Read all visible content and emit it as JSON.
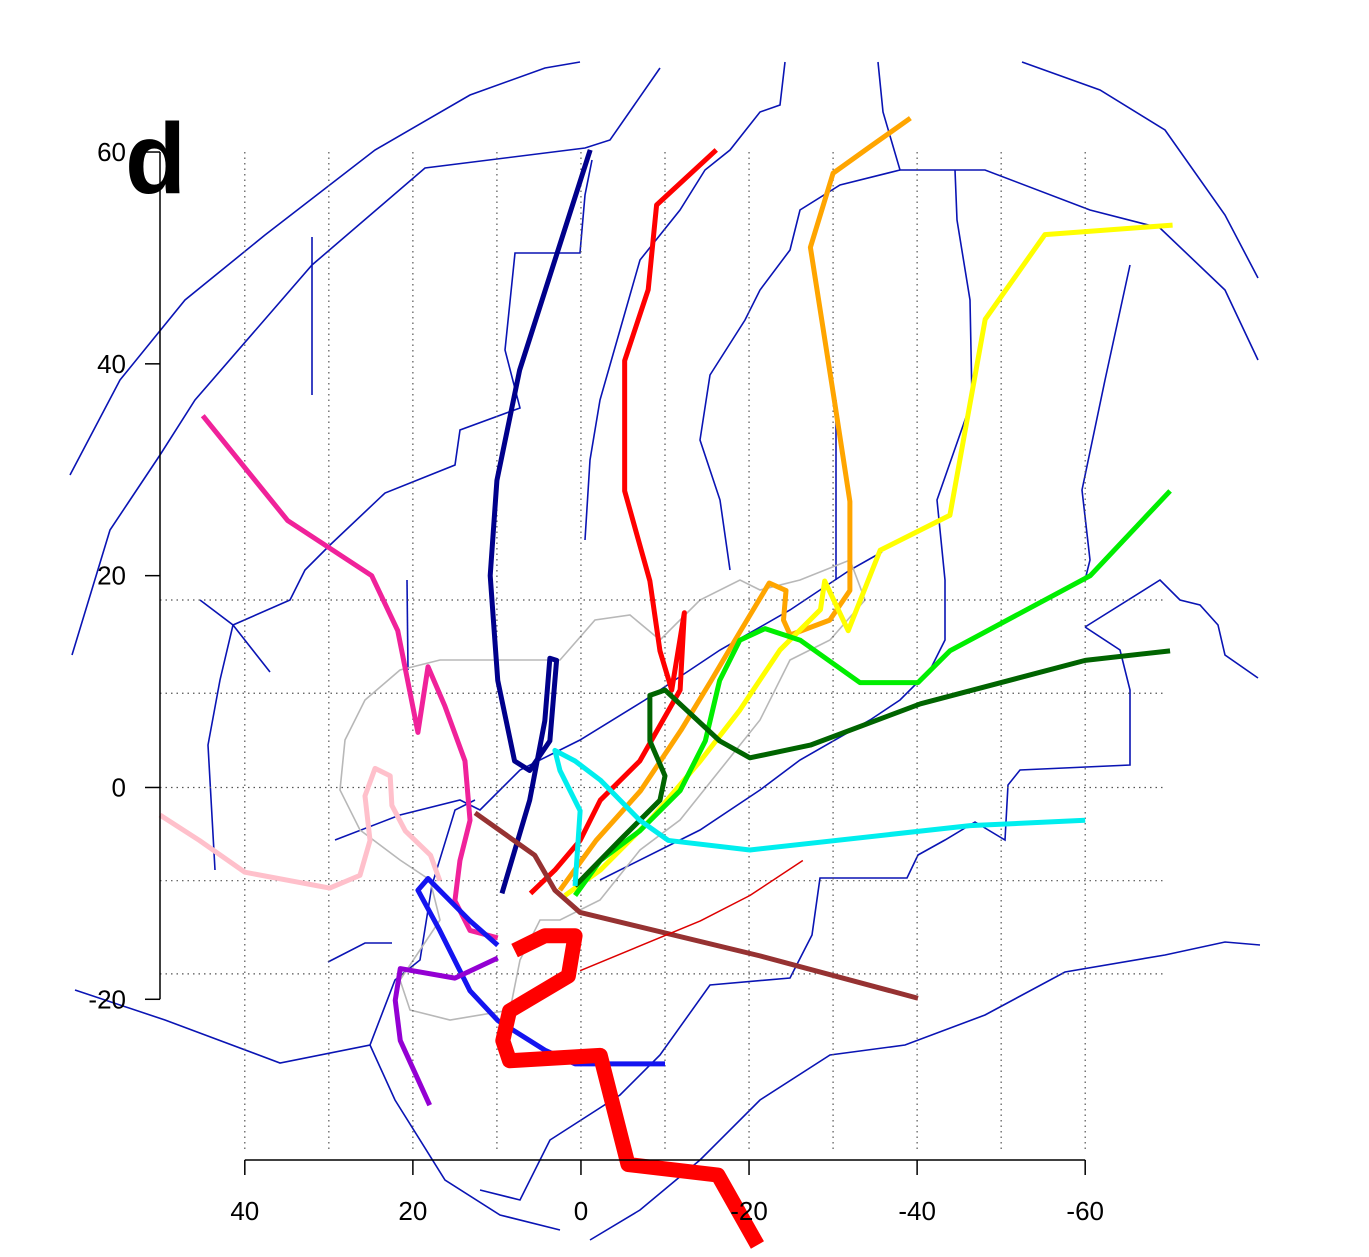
{
  "chart_data": {
    "type": "line",
    "label": "d",
    "xlim": [
      60.8,
      -80.8
    ],
    "ylim": [
      -43.2,
      68.5
    ],
    "xticks": [
      40,
      20,
      0,
      -20,
      -40,
      -60
    ],
    "yticks": [
      60,
      40,
      20,
      0,
      -20
    ],
    "grid_x": [
      40,
      30,
      20,
      10,
      0,
      -10,
      -20,
      -30,
      -40,
      -50,
      -60
    ],
    "grid_y": [
      17.7,
      8.9,
      0,
      -8.8,
      -17.6
    ],
    "series": [
      {
        "color": "#00008b",
        "width": 5,
        "x": [
          -1.1,
          7.3,
          10,
          10.8,
          9.9,
          7.9,
          6.1,
          3.7,
          2.9,
          3.7,
          4.3,
          6.1,
          9.4
        ],
        "values": [
          60.2,
          39.4,
          29,
          20,
          10.1,
          2.5,
          1.6,
          4.4,
          12,
          12.2,
          6.3,
          -1.2,
          -10
        ]
      },
      {
        "color": "#ff0000",
        "width": 5,
        "x": [
          -16.1,
          -9.0,
          -8,
          -5.2,
          -5.2,
          -8.2,
          -9.4,
          -10.8,
          -12.3,
          -11.8,
          -7.0,
          -2.3,
          0.1,
          3.1,
          6
        ],
        "values": [
          60.2,
          55,
          47,
          40.3,
          28,
          19.5,
          12.9,
          9.2,
          16.5,
          9.2,
          2.5,
          -1.2,
          -5,
          -7.8,
          -10
        ]
      },
      {
        "color": "#ffa500",
        "width": 5,
        "x": [
          -39.2,
          -34.4,
          -30,
          -27.3,
          -30.2,
          -32,
          -32,
          -29.6,
          -24.9,
          -24.1,
          -24.4,
          -22.4,
          -19,
          -15.5,
          -11.9,
          -7.1,
          -1.8,
          2.5
        ],
        "values": [
          63.2,
          60.5,
          58,
          51,
          36.3,
          27,
          18.6,
          15.8,
          14.4,
          15.8,
          18.6,
          19.3,
          14.8,
          10.1,
          5.4,
          -0.3,
          -5,
          -9.7
        ]
      },
      {
        "color": "#ffff00",
        "width": 5,
        "x": [
          -70.4,
          -55.2,
          -48.1,
          -43.9,
          -35.6,
          -31.8,
          -29,
          -28.5,
          -23.7,
          -18.9,
          -14.2,
          -8.2,
          -2.3,
          1.9
        ],
        "values": [
          53.1,
          52.2,
          44.2,
          25.7,
          22.4,
          14.8,
          19.5,
          16.8,
          13,
          7.3,
          2.5,
          -3.1,
          -7.8,
          -10.2
        ]
      },
      {
        "color": "#00ee00",
        "width": 5,
        "x": [
          -70.1,
          -60.6,
          -43.9,
          -40.1,
          -33.2,
          -26.1,
          -21.9,
          -18.9,
          -16.5,
          -14.8,
          -11.8,
          -7,
          -2.3,
          0.7
        ],
        "values": [
          28,
          20,
          12.9,
          9.9,
          9.9,
          13.9,
          15,
          13.9,
          10.1,
          4.4,
          -0.3,
          -4.1,
          -6.9,
          -10.2
        ]
      },
      {
        "color": "#006400",
        "width": 5,
        "x": [
          -70.1,
          -60,
          -40.4,
          -27.3,
          -20.1,
          -16.5,
          -10,
          -8.2,
          -8.2,
          -10,
          -9.4,
          -4.6,
          0.7
        ],
        "values": [
          12.9,
          12,
          7.9,
          4,
          2.8,
          4.4,
          9.2,
          8.7,
          4.4,
          1.1,
          -1.2,
          -5,
          -9.3
        ]
      },
      {
        "color": "#00eeee",
        "width": 5,
        "x": [
          -60,
          -46.3,
          -20.1,
          -10.4,
          -7,
          -2.3,
          0.7,
          3.1,
          2.5,
          0.1,
          0.7
        ],
        "values": [
          -3.1,
          -3.6,
          -5.9,
          -5,
          -3.1,
          0.7,
          2.5,
          3.5,
          1.6,
          -2.2,
          -9.3
        ]
      },
      {
        "color": "#963232",
        "width": 5,
        "x": [
          -40.1,
          -21.3,
          0.1,
          3.1,
          5.5,
          12.6
        ],
        "values": [
          -19.9,
          -15.9,
          -11.8,
          -9.7,
          -6.4,
          -2.4
        ]
      },
      {
        "color": "#ffc0cb",
        "width": 5,
        "x": [
          50.1,
          45.4,
          40,
          29.9,
          26.3,
          25.1,
          25.7,
          24.5,
          22.7,
          22.5,
          20.9,
          17.9,
          16.8
        ],
        "values": [
          -2.6,
          -5,
          -8,
          -9.5,
          -8.3,
          -5,
          -0.8,
          1.8,
          1.1,
          -1.7,
          -4.1,
          -6.4,
          -8.8
        ]
      },
      {
        "color": "#f0229a",
        "width": 5,
        "x": [
          45,
          34.9,
          24.9,
          21.8,
          19.4,
          18.2,
          16.2,
          13.8,
          13.2,
          14.4,
          15,
          13.2,
          9.9
        ],
        "values": [
          35.1,
          25.2,
          20,
          14.8,
          5.2,
          11.4,
          7.7,
          2.5,
          -3.1,
          -6.9,
          -10.7,
          -13.5,
          -14.2
        ]
      },
      {
        "color": "#1414f0",
        "width": 5,
        "x": [
          -10,
          0.7,
          4.3,
          9.9,
          13.2,
          16.8,
          19.4,
          18.2,
          16.2,
          13.2,
          9.9
        ],
        "values": [
          -26.1,
          -26.1,
          -24.8,
          -22,
          -19.2,
          -13.5,
          -9.7,
          -8.6,
          -10.2,
          -12.6,
          -14.9
        ]
      },
      {
        "color": "#9400d3",
        "width": 5,
        "x": [
          18,
          21.5,
          22.1,
          21.5,
          15,
          9.9
        ],
        "values": [
          -30,
          -23.9,
          -20.1,
          -17.1,
          -18,
          -16.1
        ]
      },
      {
        "color": "#ff0000",
        "width": 15,
        "x": [
          -21,
          -16.3,
          -5.6,
          -2.3,
          8.5,
          9.3,
          8.5,
          1.5,
          0.7,
          4.3,
          7.9
        ],
        "values": [
          -43.2,
          -36.6,
          -35.6,
          -25.3,
          -25.8,
          -23.9,
          -21.1,
          -17.8,
          -14,
          -14,
          -15.4
        ]
      },
      {
        "color": "#dd0000",
        "width": 1.5,
        "x": [
          -26.4,
          -20.1,
          -14.2,
          0.1
        ],
        "values": [
          -6.9,
          -10.2,
          -12.6,
          -17.3
        ]
      }
    ]
  }
}
